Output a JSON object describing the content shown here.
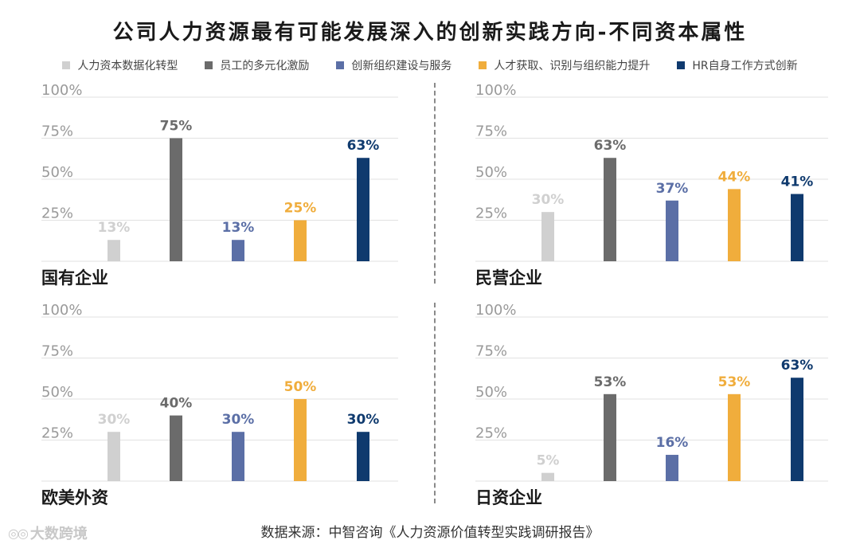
{
  "title": "公司人力资源最有可能发展深入的创新实践方向-不同资本属性",
  "legend": [
    {
      "label": "人力资本数据化转型",
      "color": "#d0d0d0"
    },
    {
      "label": "员工的多元化激励",
      "color": "#6b6b6b"
    },
    {
      "label": "创新组织建设与服务",
      "color": "#5b6fa6"
    },
    {
      "label": "人才获取、识别与组织能力提升",
      "color": "#f0ad3c"
    },
    {
      "label": "HR自身工作方式创新",
      "color": "#0f3a6e"
    }
  ],
  "source": "数据来源：中智咨询《人力资源价值转型实践调研报告》",
  "watermark": "大数跨境",
  "chart_data": [
    {
      "type": "bar",
      "title": "国有企业",
      "categories": [
        "人力资本数据化转型",
        "员工的多元化激励",
        "创新组织建设与服务",
        "人才获取、识别与组织能力提升",
        "HR自身工作方式创新"
      ],
      "values": [
        13,
        75,
        13,
        25,
        63
      ],
      "value_labels": [
        "13%",
        "75%",
        "13%",
        "25%",
        "63%"
      ],
      "yticks": [
        "25%",
        "50%",
        "75%",
        "100%"
      ],
      "ylim": [
        0,
        100
      ]
    },
    {
      "type": "bar",
      "title": "民营企业",
      "categories": [
        "人力资本数据化转型",
        "员工的多元化激励",
        "创新组织建设与服务",
        "人才获取、识别与组织能力提升",
        "HR自身工作方式创新"
      ],
      "values": [
        30,
        63,
        37,
        44,
        41
      ],
      "value_labels": [
        "30%",
        "63%",
        "37%",
        "44%",
        "41%"
      ],
      "yticks": [
        "25%",
        "50%",
        "75%",
        "100%"
      ],
      "ylim": [
        0,
        100
      ]
    },
    {
      "type": "bar",
      "title": "欧美外资",
      "categories": [
        "人力资本数据化转型",
        "员工的多元化激励",
        "创新组织建设与服务",
        "人才获取、识别与组织能力提升",
        "HR自身工作方式创新"
      ],
      "values": [
        30,
        40,
        30,
        50,
        30
      ],
      "value_labels": [
        "30%",
        "40%",
        "30%",
        "50%",
        "30%"
      ],
      "yticks": [
        "25%",
        "50%",
        "75%",
        "100%"
      ],
      "ylim": [
        0,
        100
      ]
    },
    {
      "type": "bar",
      "title": "日资企业",
      "categories": [
        "人力资本数据化转型",
        "员工的多元化激励",
        "创新组织建设与服务",
        "人才获取、识别与组织能力提升",
        "HR自身工作方式创新"
      ],
      "values": [
        5,
        53,
        16,
        53,
        63
      ],
      "value_labels": [
        "5%",
        "53%",
        "16%",
        "53%",
        "63%"
      ],
      "yticks": [
        "25%",
        "50%",
        "75%",
        "100%"
      ],
      "ylim": [
        0,
        100
      ]
    }
  ]
}
